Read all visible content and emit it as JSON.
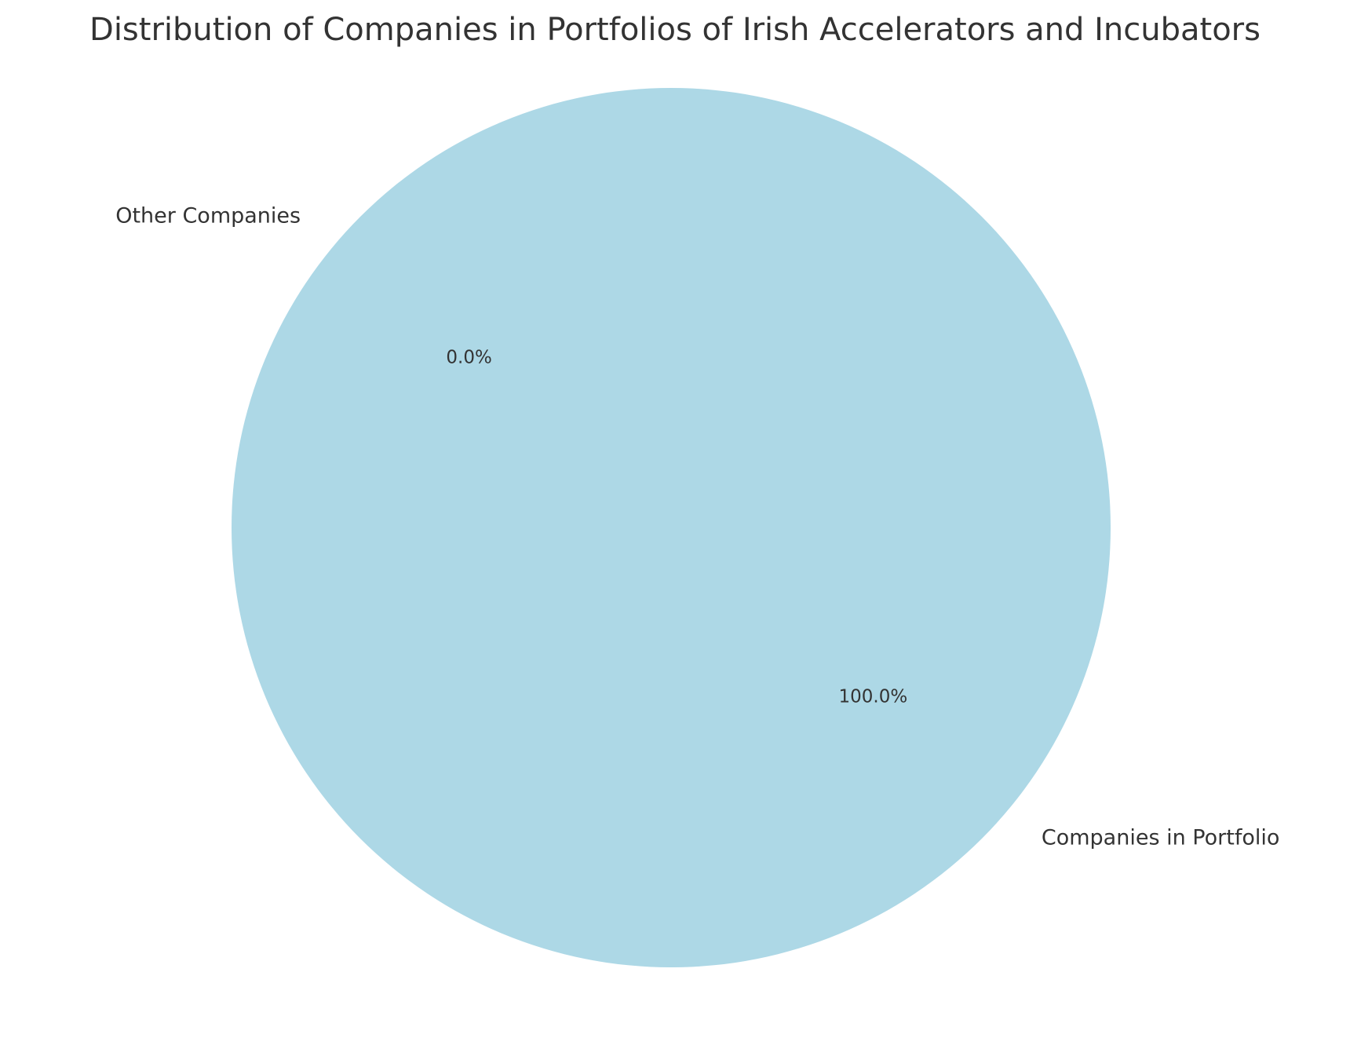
{
  "chart_data": {
    "type": "pie",
    "title": "Distribution of Companies in Portfolios of Irish Accelerators and Incubators",
    "categories": [
      "Other Companies",
      "Companies in Portfolio"
    ],
    "values": [
      0,
      100
    ],
    "value_labels": [
      "0.0%",
      "100.0%"
    ],
    "colors": [
      "#f08080",
      "#add8e6"
    ]
  }
}
